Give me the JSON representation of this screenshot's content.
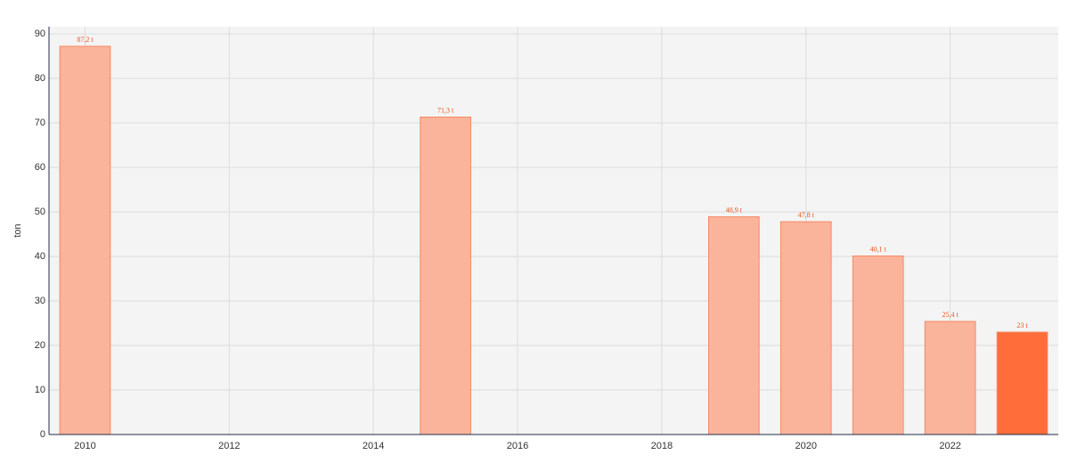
{
  "chart_data": {
    "type": "bar",
    "y_label": "ton",
    "x": [
      2010,
      2015,
      2019,
      2020,
      2021,
      2022,
      2023
    ],
    "values": [
      87.2,
      71.3,
      48.9,
      47.8,
      40.1,
      25.4,
      23
    ],
    "value_labels": [
      "87,2 t",
      "71,3 t",
      "48,9 t",
      "47,8 t",
      "40,1 t",
      "25,4 t",
      "23 t"
    ],
    "colors": [
      "#fbb49c",
      "#fbb49c",
      "#fbb49c",
      "#fbb49c",
      "#fbb49c",
      "#fbb49c",
      "#ff6d3a"
    ],
    "xlim": [
      2009.5,
      2023.5
    ],
    "xticks": [
      2010,
      2012,
      2014,
      2016,
      2018,
      2020,
      2022
    ],
    "ylim": [
      0,
      91.6
    ],
    "yticks": [
      0,
      10,
      20,
      30,
      40,
      50,
      60,
      70,
      80,
      90
    ],
    "grid": true
  }
}
